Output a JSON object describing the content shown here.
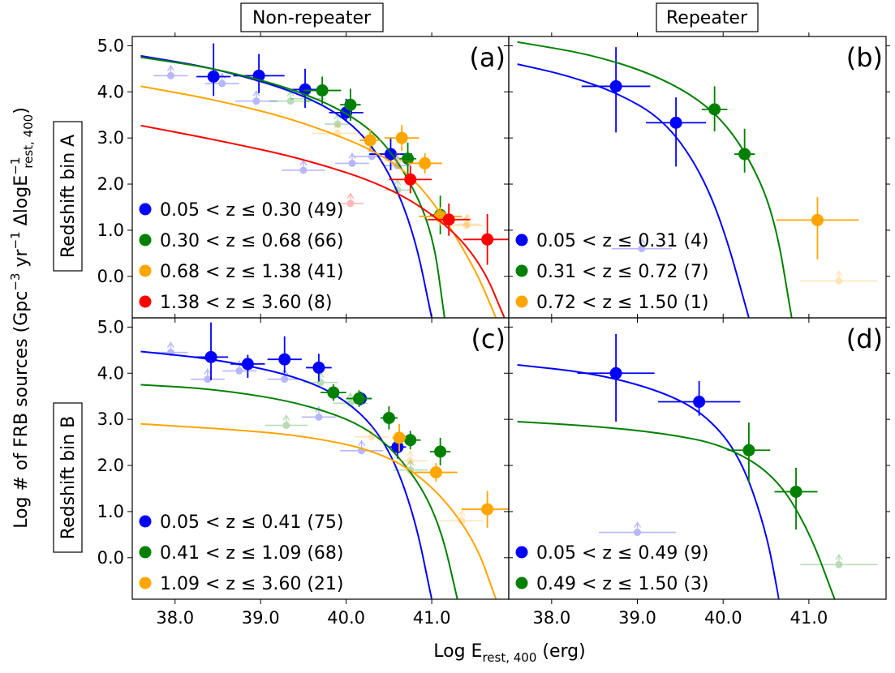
{
  "figure": {
    "col_titles": [
      "Non-repeater",
      "Repeater"
    ],
    "row_titles": [
      "Redshift bin A",
      "Redshift bin B"
    ],
    "ylabel_main": "Log # of FRB sources (Gpc",
    "ylabel_sup1": "−3",
    "ylabel_mid": " yr",
    "ylabel_sup2": "−1",
    "ylabel_tail": " ΔlogE",
    "ylabel_sup3": "−1",
    "ylabel_sub": "rest, 400",
    "ylabel_close": ")",
    "xlabel_main": "Log E",
    "xlabel_sub": "rest, 400",
    "xlabel_tail": " (erg)"
  },
  "colors": {
    "blue": "#0000ff",
    "green": "#008000",
    "orange": "#ffa500",
    "red": "#ff0000"
  },
  "chart_data": [
    {
      "panel": "(a)",
      "type": "scatter",
      "xlim": [
        37.5,
        41.9
      ],
      "ylim": [
        -0.9,
        5.2
      ],
      "xticks": [
        "38.0",
        "39.0",
        "40.0",
        "41.0"
      ],
      "yticks": [
        "0.0",
        "1.0",
        "2.0",
        "3.0",
        "4.0",
        "5.0"
      ],
      "series": [
        {
          "name": "0.05 < z ≤ 0.30 (49)",
          "color": "blue",
          "points": [
            [
              38.45,
              4.33,
              0.2,
              0.72,
              0.42
            ],
            [
              38.98,
              4.35,
              0.3,
              0.47,
              0.38
            ],
            [
              39.52,
              4.05,
              0.15,
              0.45,
              0.4
            ],
            [
              40.0,
              3.55,
              0.2,
              0.3,
              0.2
            ],
            [
              40.52,
              2.65,
              0.25,
              0.35,
              0.35
            ]
          ],
          "limits": [
            [
              37.95,
              4.35,
              0.2
            ],
            [
              38.55,
              4.18,
              0.2
            ],
            [
              38.95,
              3.8,
              0.25
            ],
            [
              39.5,
              2.3,
              0.25
            ],
            [
              40.07,
              2.45,
              0.2
            ],
            [
              40.3,
              2.6,
              0.2
            ],
            [
              40.6,
              2.4,
              0.15
            ]
          ],
          "curve": [
            [
              37.6,
              4.78
            ],
            [
              38.5,
              4.5
            ],
            [
              39.5,
              3.95
            ],
            [
              40.1,
              3.3
            ],
            [
              40.5,
              2.3
            ],
            [
              40.8,
              0.9
            ],
            [
              41.0,
              -0.9
            ]
          ]
        },
        {
          "name": "0.30 < z ≤ 0.68 (66)",
          "color": "green",
          "points": [
            [
              39.72,
              4.03,
              0.22,
              0.3,
              0.3
            ],
            [
              40.05,
              3.72,
              0.12,
              0.35,
              0.35
            ],
            [
              40.72,
              2.55,
              0.1,
              0.35,
              0.35
            ],
            [
              41.1,
              1.33,
              0.12,
              0.42,
              0.42
            ]
          ],
          "limits": [
            [
              39.35,
              3.8,
              0.25
            ],
            [
              39.55,
              3.85,
              0.2
            ],
            [
              39.9,
              3.3,
              0.15
            ],
            [
              40.6,
              1.87,
              0.15
            ]
          ],
          "curve": [
            [
              37.6,
              4.75
            ],
            [
              38.5,
              4.5
            ],
            [
              39.5,
              4.0
            ],
            [
              40.2,
              3.35
            ],
            [
              40.6,
              2.55
            ],
            [
              41.0,
              1.1
            ],
            [
              41.15,
              -0.9
            ]
          ]
        },
        {
          "name": "0.68 < z ≤ 1.38 (41)",
          "color": "orange",
          "points": [
            [
              40.28,
              2.95,
              0.12,
              0.25,
              0.25
            ],
            [
              40.65,
              3.0,
              0.2,
              0.28,
              0.28
            ],
            [
              40.92,
              2.45,
              0.2,
              0.22,
              0.22
            ],
            [
              41.1,
              1.3,
              0.25,
              0.2,
              0.2
            ]
          ],
          "limits": [
            [
              39.9,
              3.1,
              0.3
            ],
            [
              40.6,
              2.5,
              0.2
            ],
            [
              41.4,
              1.1,
              0.2
            ],
            [
              41.42,
              1.13,
              0.15
            ]
          ],
          "curve": [
            [
              37.6,
              4.12
            ],
            [
              38.5,
              3.82
            ],
            [
              39.5,
              3.35
            ],
            [
              40.5,
              2.6
            ],
            [
              41.0,
              1.7
            ],
            [
              41.5,
              0.2
            ],
            [
              41.75,
              -0.9
            ]
          ]
        },
        {
          "name": "1.38 < z ≤ 3.60 (8)",
          "color": "red",
          "points": [
            [
              40.75,
              2.1,
              0.25,
              0.3,
              0.3
            ],
            [
              41.2,
              1.23,
              0.25,
              0.35,
              0.35
            ],
            [
              41.65,
              0.8,
              0.28,
              0.55,
              0.55
            ]
          ],
          "limits": [
            [
              40.05,
              1.58,
              0.15
            ]
          ],
          "curve": [
            [
              37.6,
              3.27
            ],
            [
              38.5,
              2.95
            ],
            [
              39.5,
              2.55
            ],
            [
              40.5,
              1.95
            ],
            [
              41.2,
              1.1
            ],
            [
              41.6,
              0.2
            ],
            [
              41.85,
              -0.9
            ]
          ]
        }
      ]
    },
    {
      "panel": "(b)",
      "type": "scatter",
      "xlim": [
        37.5,
        41.9
      ],
      "ylim": [
        -0.9,
        5.2
      ],
      "xticks": [
        "38.0",
        "39.0",
        "40.0",
        "41.0"
      ],
      "yticks": [
        "0.0",
        "1.0",
        "2.0",
        "3.0",
        "4.0",
        "5.0"
      ],
      "series": [
        {
          "name": "0.05 < z ≤ 0.31 (4)",
          "color": "blue",
          "points": [
            [
              38.75,
              4.12,
              0.4,
              0.85,
              1.0
            ],
            [
              39.45,
              3.33,
              0.35,
              0.55,
              0.95
            ]
          ],
          "limits": [
            [
              39.05,
              0.6,
              0.35
            ]
          ],
          "curve": [
            [
              37.6,
              4.6
            ],
            [
              38.2,
              4.35
            ],
            [
              38.8,
              3.95
            ],
            [
              39.3,
              3.4
            ],
            [
              39.7,
              2.4
            ],
            [
              40.0,
              1.1
            ],
            [
              40.3,
              -0.9
            ]
          ]
        },
        {
          "name": "0.31 < z ≤ 0.72 (7)",
          "color": "green",
          "points": [
            [
              39.9,
              3.62,
              0.15,
              0.5,
              0.48
            ],
            [
              40.25,
              2.65,
              0.12,
              0.55,
              0.4
            ]
          ],
          "limits": [],
          "curve": [
            [
              37.6,
              5.08
            ],
            [
              38.5,
              4.8
            ],
            [
              39.3,
              4.3
            ],
            [
              39.9,
              3.6
            ],
            [
              40.3,
              2.6
            ],
            [
              40.6,
              1.3
            ],
            [
              40.8,
              -0.9
            ]
          ]
        },
        {
          "name": "0.72 < z ≤ 1.50 (1)",
          "color": "orange",
          "points": [
            [
              41.1,
              1.22,
              0.48,
              0.5,
              0.85
            ]
          ],
          "limits": [
            [
              41.35,
              -0.1,
              0.45
            ]
          ],
          "curve": []
        }
      ]
    },
    {
      "panel": "(c)",
      "type": "scatter",
      "xlim": [
        37.5,
        41.9
      ],
      "ylim": [
        -0.9,
        5.2
      ],
      "xticks": [
        "38.0",
        "39.0",
        "40.0",
        "41.0"
      ],
      "yticks": [
        "0.0",
        "1.0",
        "2.0",
        "3.0",
        "4.0",
        "5.0"
      ],
      "series": [
        {
          "name": "0.05 < z ≤ 0.41 (75)",
          "color": "blue",
          "points": [
            [
              38.42,
              4.35,
              0.2,
              0.75,
              0.5
            ],
            [
              38.85,
              4.2,
              0.2,
              0.2,
              0.3
            ],
            [
              39.28,
              4.3,
              0.2,
              0.5,
              0.3
            ],
            [
              39.68,
              4.12,
              0.15,
              0.3,
              0.3
            ],
            [
              40.17,
              3.45,
              0.12,
              0.15,
              0.15
            ],
            [
              40.6,
              2.4,
              0.1,
              0.25,
              0.25
            ]
          ],
          "limits": [
            [
              37.95,
              4.45,
              0.2
            ],
            [
              38.38,
              3.87,
              0.2
            ],
            [
              38.75,
              4.05,
              0.2
            ],
            [
              39.28,
              3.87,
              0.2
            ],
            [
              39.68,
              3.05,
              0.2
            ],
            [
              40.18,
              2.32,
              0.25
            ]
          ],
          "curve": [
            [
              37.6,
              4.47
            ],
            [
              38.5,
              4.3
            ],
            [
              39.5,
              3.9
            ],
            [
              40.1,
              3.3
            ],
            [
              40.5,
              2.4
            ],
            [
              40.8,
              0.9
            ],
            [
              41.0,
              -0.9
            ]
          ]
        },
        {
          "name": "0.41 < z ≤ 1.09 (68)",
          "color": "green",
          "points": [
            [
              39.85,
              3.58,
              0.15,
              0.18,
              0.18
            ],
            [
              40.15,
              3.45,
              0.15,
              0.18,
              0.18
            ],
            [
              40.5,
              3.03,
              0.1,
              0.25,
              0.25
            ],
            [
              40.75,
              2.55,
              0.12,
              0.2,
              0.2
            ],
            [
              41.1,
              2.3,
              0.12,
              0.3,
              0.3
            ]
          ],
          "limits": [
            [
              39.3,
              2.87,
              0.25
            ],
            [
              39.7,
              3.8,
              0.2
            ],
            [
              40.05,
              3.35,
              0.2
            ],
            [
              40.75,
              1.9,
              0.2
            ]
          ],
          "curve": [
            [
              37.6,
              3.75
            ],
            [
              38.5,
              3.65
            ],
            [
              39.5,
              3.35
            ],
            [
              40.3,
              2.8
            ],
            [
              40.8,
              1.8
            ],
            [
              41.1,
              0.7
            ],
            [
              41.3,
              -0.9
            ]
          ]
        },
        {
          "name": "1.09 < z ≤ 3.60 (21)",
          "color": "orange",
          "points": [
            [
              40.62,
              2.6,
              0.08,
              0.3,
              0.3
            ],
            [
              41.05,
              1.85,
              0.25,
              0.2,
              0.2
            ],
            [
              41.65,
              1.05,
              0.3,
              0.4,
              0.4
            ]
          ],
          "limits": [
            [
              40.3,
              2.62,
              0.2
            ],
            [
              40.75,
              2.1,
              0.2
            ],
            [
              41.35,
              0.8,
              0.25
            ]
          ],
          "curve": [
            [
              37.6,
              2.9
            ],
            [
              38.5,
              2.8
            ],
            [
              39.5,
              2.65
            ],
            [
              40.4,
              2.3
            ],
            [
              41.0,
              1.6
            ],
            [
              41.5,
              0.4
            ],
            [
              41.75,
              -0.9
            ]
          ]
        }
      ]
    },
    {
      "panel": "(d)",
      "type": "scatter",
      "xlim": [
        37.5,
        41.9
      ],
      "ylim": [
        -0.9,
        5.2
      ],
      "xticks": [
        "38.0",
        "39.0",
        "40.0",
        "41.0"
      ],
      "yticks": [
        "0.0",
        "1.0",
        "2.0",
        "3.0",
        "4.0",
        "5.0"
      ],
      "series": [
        {
          "name": "0.05 < z ≤ 0.49 (9)",
          "color": "blue",
          "points": [
            [
              38.75,
              4.0,
              0.45,
              0.85,
              1.05
            ],
            [
              39.72,
              3.38,
              0.48,
              0.45,
              0.3
            ]
          ],
          "limits": [
            [
              39.0,
              0.55,
              0.45
            ]
          ],
          "curve": [
            [
              37.6,
              4.18
            ],
            [
              38.5,
              4.0
            ],
            [
              39.3,
              3.6
            ],
            [
              39.8,
              3.1
            ],
            [
              40.2,
              2.2
            ],
            [
              40.5,
              0.6
            ],
            [
              40.65,
              -0.9
            ]
          ]
        },
        {
          "name": "0.49 < z ≤ 1.50 (3)",
          "color": "green",
          "points": [
            [
              40.3,
              2.33,
              0.25,
              0.6,
              0.7
            ],
            [
              40.85,
              1.43,
              0.25,
              0.52,
              0.82
            ]
          ],
          "limits": [
            [
              41.35,
              -0.15,
              0.45
            ]
          ],
          "curve": [
            [
              37.6,
              2.95
            ],
            [
              38.5,
              2.85
            ],
            [
              39.3,
              2.7
            ],
            [
              40.0,
              2.45
            ],
            [
              40.6,
              1.8
            ],
            [
              41.0,
              0.6
            ],
            [
              41.3,
              -0.9
            ]
          ]
        }
      ]
    }
  ],
  "panel_labels": [
    "(a)",
    "(b)",
    "(c)",
    "(d)"
  ]
}
